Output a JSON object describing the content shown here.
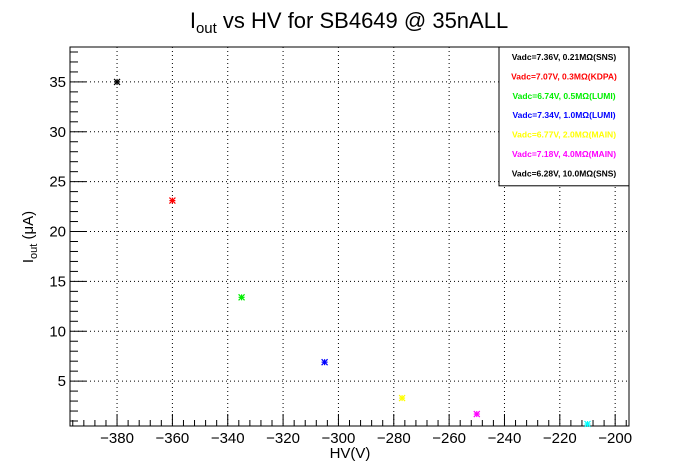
{
  "chart_data": {
    "type": "scatter",
    "title_main": "I",
    "title_sub": "out",
    "title_rest": " vs HV for SB4649 @ 35nALL",
    "xlabel": "HV(V)",
    "ylabel_main": "I",
    "ylabel_sub": "out",
    "ylabel_rest": " (μA)",
    "xlim": [
      -397,
      -195
    ],
    "ylim": [
      0.5,
      38.5
    ],
    "xticks": [
      -380,
      -360,
      -340,
      -320,
      -300,
      -280,
      -260,
      -240,
      -220,
      -200
    ],
    "yticks": [
      5,
      10,
      15,
      20,
      25,
      30,
      35
    ],
    "grid": true,
    "legend_position": "top-right",
    "series": [
      {
        "name": "Vadc=7.36V, 0.21MΩ(SNS)",
        "color": "#000000",
        "x": [
          -380
        ],
        "y": [
          35.0
        ]
      },
      {
        "name": "Vadc=7.07V, 0.3MΩ(KDPA)",
        "color": "#ff0000",
        "x": [
          -360
        ],
        "y": [
          23.1
        ]
      },
      {
        "name": "Vadc=6.74V, 0.5MΩ(LUMI)",
        "color": "#00ee00",
        "x": [
          -335
        ],
        "y": [
          13.4
        ]
      },
      {
        "name": "Vadc=7.34V, 1.0MΩ(LUMI)",
        "color": "#0000ff",
        "x": [
          -305
        ],
        "y": [
          6.9
        ]
      },
      {
        "name": "Vadc=6.77V, 2.0MΩ(MAIN)",
        "color": "#ffff00",
        "x": [
          -277
        ],
        "y": [
          3.3
        ]
      },
      {
        "name": "Vadc=7.18V, 4.0MΩ(MAIN)",
        "color": "#ff00ff",
        "x": [
          -250
        ],
        "y": [
          1.7
        ]
      },
      {
        "name": "Vadc=6.28V, 10.0MΩ(SNS)",
        "color": "#000000",
        "x": [],
        "y": []
      },
      {
        "name": "",
        "color": "#00ffff",
        "x": [
          -210
        ],
        "y": [
          0.7
        ]
      }
    ]
  }
}
